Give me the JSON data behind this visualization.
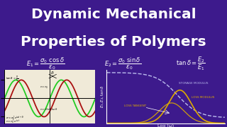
{
  "bg_color": "#3d1a8c",
  "title_line1": "Dynamic Mechanical",
  "title_line2": "Properties of Polymers",
  "title_color": "#ffffff",
  "title_fontsize": 14.5,
  "formula1": "$E_1 = \\dfrac{\\sigma_0\\ \\cos\\delta}{\\varepsilon_0}$",
  "formula2": "$E_2 = \\dfrac{\\sigma_0\\ \\sin\\delta}{\\varepsilon_0}$",
  "formula3": "$\\tan\\delta = \\dfrac{E_2}{E_1}$",
  "formula_color": "#ffffff",
  "formula_fontsize": 6.0,
  "left_panel_bg": "#f0ead8",
  "sine_color_green": "#22cc22",
  "sine_color_red": "#aa1111",
  "storage_modulus_color": "#bbbbee",
  "loss_modulus_color": "#ddaa00",
  "loss_tangent_color": "#ddaa00",
  "label_color": "#ffffff",
  "label_fontsize": 4.5,
  "xlabel": "Log (ω)",
  "ylabel": "$E_1, E_2, \\tan\\delta$",
  "storage_label": "STORAGE MODULUS",
  "loss_mod_label": "LOSS MODULUS",
  "loss_tan_label": "LOSS TANGENT"
}
